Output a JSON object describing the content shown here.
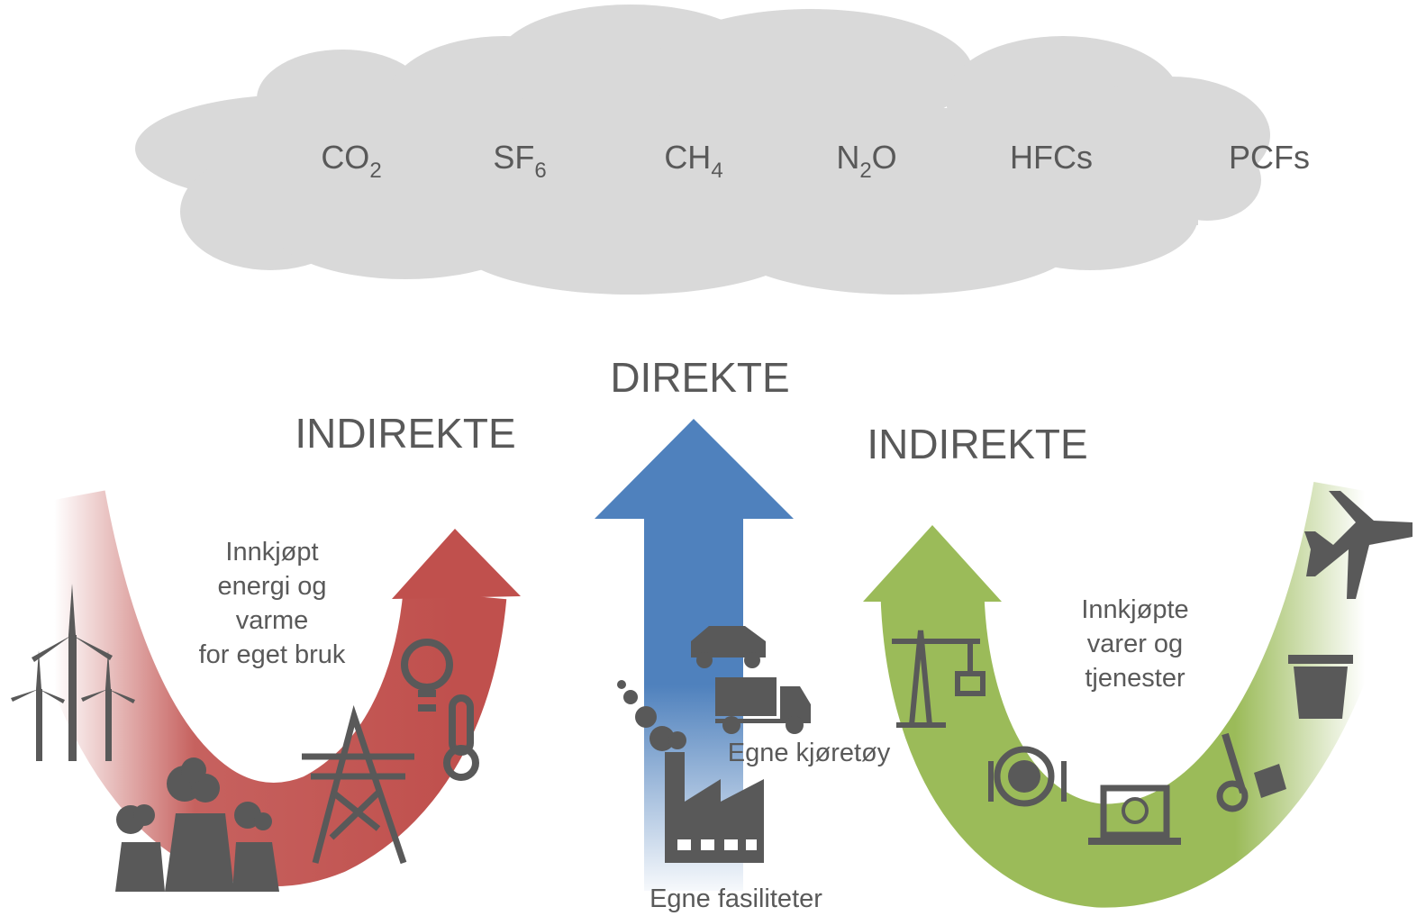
{
  "cloud": {
    "gases": [
      [
        "CO",
        "2"
      ],
      [
        "SF",
        "6"
      ],
      [
        "CH",
        "4"
      ],
      [
        "N",
        "2",
        "O"
      ],
      [
        "HFCs"
      ],
      [
        "PCFs"
      ]
    ]
  },
  "left": {
    "title": "INDIREKTE",
    "label": [
      "Innkjøpt",
      "energi og",
      "varme",
      "for eget bruk"
    ]
  },
  "center": {
    "title": "DIREKTE",
    "vehicles": "Egne kjøretøy",
    "facilities": "Egne fasiliteter"
  },
  "right": {
    "title": "INDIREKTE",
    "label": [
      "Innkjøpte",
      "varer og",
      "tjenester"
    ]
  }
}
